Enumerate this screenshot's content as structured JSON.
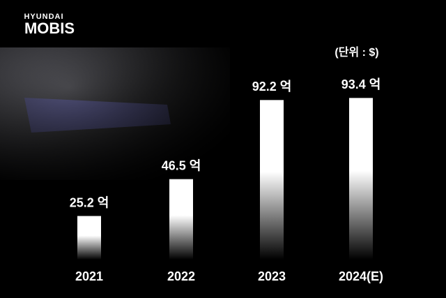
{
  "chart_data": {
    "type": "bar",
    "brand": [
      "HYUNDAI",
      "MOBIS"
    ],
    "unit_note": "(단위 : $)",
    "categories": [
      "2021",
      "2022",
      "2023",
      "2024(E)"
    ],
    "values": [
      25.2,
      46.5,
      92.2,
      93.4
    ],
    "value_labels": [
      "25.2 억",
      "46.5 억",
      "92.2 억",
      "93.4 억"
    ],
    "color": "#ffffff"
  }
}
